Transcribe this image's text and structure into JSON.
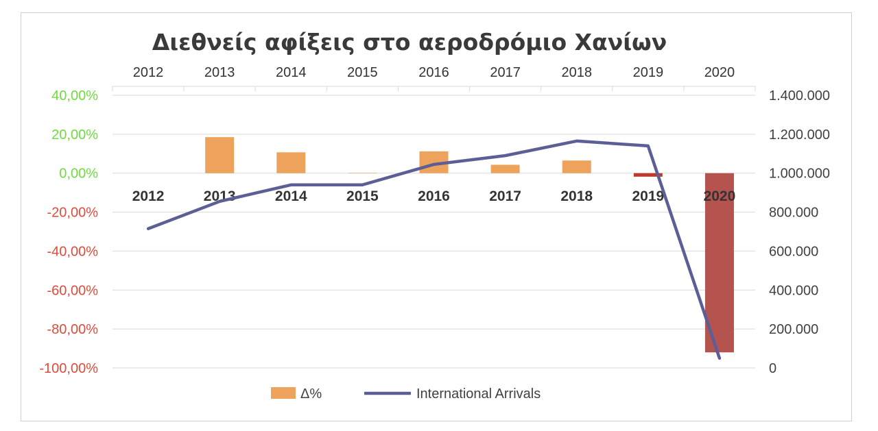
{
  "chart_data": {
    "type": "bar",
    "title": "Διεθνείς αφίξεις στο αεροδρόμιο Χανίων",
    "categories": [
      "2012",
      "2013",
      "2014",
      "2015",
      "2016",
      "2017",
      "2018",
      "2019",
      "2020"
    ],
    "series": [
      {
        "name": "Δ%",
        "type": "bar",
        "axis": "left",
        "values": [
          0.0,
          18.5,
          10.7,
          0.2,
          11.2,
          4.3,
          6.5,
          -1.8,
          -92.0
        ]
      },
      {
        "name": "International Arrivals",
        "type": "line",
        "axis": "right",
        "values": [
          715000,
          855000,
          940000,
          940000,
          1045000,
          1090000,
          1165000,
          1140000,
          50000
        ]
      }
    ],
    "left_axis": {
      "ylim": [
        -100,
        40
      ],
      "ticks": [
        "40,00%",
        "20,00%",
        "0,00%",
        "-20,00%",
        "-40,00%",
        "-60,00%",
        "-80,00%",
        "-100,00%"
      ],
      "positive_color": "#6edc3c",
      "negative_color": "#e04a3a"
    },
    "right_axis": {
      "ylim": [
        0,
        1400000
      ],
      "ticks": [
        "1.400.000",
        "1.200.000",
        "1.000.000",
        "800.000",
        "600.000",
        "400.000",
        "200.000",
        "0"
      ]
    },
    "colors": {
      "bar_positive": "#eea35c",
      "bar_negative_small": "#c0392b",
      "bar_negative_large": "#b5534e",
      "line": "#5c5f96",
      "gridline": "#d9d9d9"
    },
    "grid": true,
    "legend_position": "bottom"
  }
}
